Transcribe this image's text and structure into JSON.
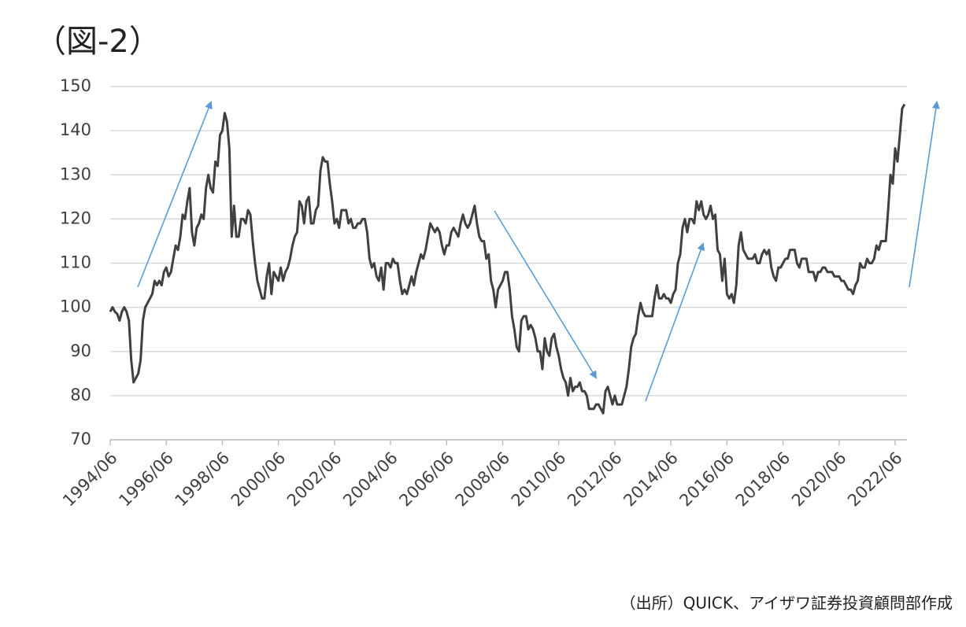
{
  "title": "（図-2）",
  "source": "（出所）QUICK、アイザワ証券投資顧問部作成",
  "chart_data": {
    "type": "line",
    "color": "#404040",
    "grid": true,
    "ylim": [
      70,
      150
    ],
    "yticks": [
      70,
      80,
      90,
      100,
      110,
      120,
      130,
      140,
      150
    ],
    "categories": [
      "1994/06",
      null,
      null,
      null,
      null,
      null,
      null,
      null,
      null,
      null,
      null,
      null,
      null,
      null,
      null,
      null,
      null,
      null,
      null,
      null,
      null,
      null,
      null,
      null,
      "1996/06",
      null,
      null,
      null,
      null,
      null,
      null,
      null,
      null,
      null,
      null,
      null,
      null,
      null,
      null,
      null,
      null,
      null,
      null,
      null,
      null,
      null,
      null,
      null,
      "1998/06",
      null,
      null,
      null,
      null,
      null,
      null,
      null,
      null,
      null,
      null,
      null,
      null,
      null,
      null,
      null,
      null,
      null,
      null,
      null,
      null,
      null,
      null,
      null,
      "2000/06",
      null,
      null,
      null,
      null,
      null,
      null,
      null,
      null,
      null,
      null,
      null,
      null,
      null,
      null,
      null,
      null,
      null,
      null,
      null,
      null,
      null,
      null,
      null,
      "2002/06",
      null,
      null,
      null,
      null,
      null,
      null,
      null,
      null,
      null,
      null,
      null,
      null,
      null,
      null,
      null,
      null,
      null,
      null,
      null,
      null,
      null,
      null,
      null,
      "2004/06",
      null,
      null,
      null,
      null,
      null,
      null,
      null,
      null,
      null,
      null,
      null,
      null,
      null,
      null,
      null,
      null,
      null,
      null,
      null,
      null,
      null,
      null,
      null,
      "2006/06",
      null,
      null,
      null,
      null,
      null,
      null,
      null,
      null,
      null,
      null,
      null,
      null,
      null,
      null,
      null,
      null,
      null,
      null,
      null,
      null,
      null,
      null,
      null,
      "2008/06",
      null,
      null,
      null,
      null,
      null,
      null,
      null,
      null,
      null,
      null,
      null,
      null,
      null,
      null,
      null,
      null,
      null,
      null,
      null,
      null,
      null,
      null,
      null,
      "2010/06",
      null,
      null,
      null,
      null,
      null,
      null,
      null,
      null,
      null,
      null,
      null,
      null,
      null,
      null,
      null,
      null,
      null,
      null,
      null,
      null,
      null,
      null,
      null,
      "2012/06",
      null,
      null,
      null,
      null,
      null,
      null,
      null,
      null,
      null,
      null,
      null,
      null,
      null,
      null,
      null,
      null,
      null,
      null,
      null,
      null,
      null,
      null,
      null,
      "2014/06",
      null,
      null,
      null,
      null,
      null,
      null,
      null,
      null,
      null,
      null,
      null,
      null,
      null,
      null,
      null,
      null,
      null,
      null,
      null,
      null,
      null,
      null,
      null,
      "2016/06",
      null,
      null,
      null,
      null,
      null,
      null,
      null,
      null,
      null,
      null,
      null,
      null,
      null,
      null,
      null,
      null,
      null,
      null,
      null,
      null,
      null,
      null,
      null,
      "2018/06",
      null,
      null,
      null,
      null,
      null,
      null,
      null,
      null,
      null,
      null,
      null,
      null,
      null,
      null,
      null,
      null,
      null,
      null,
      null,
      null,
      null,
      null,
      null,
      "2020/06",
      null,
      null,
      null,
      null,
      null,
      null,
      null,
      null,
      null,
      null,
      null,
      null,
      null,
      null,
      null,
      null,
      null,
      null,
      null,
      null,
      null,
      null,
      null,
      "2022/06",
      null,
      null,
      null,
      null
    ],
    "values": [
      99,
      100,
      99,
      98.5,
      97,
      99,
      100,
      99,
      97,
      88,
      83,
      84,
      85,
      88,
      97,
      100,
      101,
      102,
      103,
      106,
      105,
      106,
      105,
      108,
      109,
      107,
      108,
      111,
      114,
      113,
      116,
      121,
      120,
      124,
      127,
      117,
      114,
      118,
      119,
      121,
      120,
      127,
      130,
      127,
      126,
      133,
      132,
      139,
      140,
      144,
      142,
      136,
      116,
      123,
      116,
      116,
      120,
      120,
      119,
      122,
      121,
      115,
      110,
      106,
      104,
      102,
      102,
      107,
      110,
      103,
      108,
      107,
      106,
      109,
      106,
      108,
      109,
      111,
      114,
      116,
      117,
      124,
      123,
      119,
      124,
      125,
      119,
      119,
      122,
      123,
      131,
      134,
      133,
      133,
      128,
      124,
      119,
      120,
      118,
      122,
      122,
      122,
      119,
      120,
      118,
      118,
      119,
      119,
      120,
      120,
      117,
      111,
      109,
      110,
      107,
      106,
      109,
      104,
      110,
      110,
      109,
      111,
      110,
      110,
      106,
      103,
      104,
      103,
      105,
      107,
      105,
      108,
      110,
      112,
      111,
      113,
      116,
      119,
      118,
      117,
      118,
      117,
      114,
      112,
      114,
      114,
      117,
      118,
      117,
      116,
      119,
      121,
      119,
      118,
      119,
      121,
      123,
      119,
      116,
      115,
      115,
      111,
      112,
      106,
      104,
      100,
      104,
      105,
      106,
      108,
      108,
      104,
      98,
      95,
      91,
      90,
      97,
      98,
      98,
      95,
      96,
      95,
      93,
      90,
      90,
      86,
      93,
      90,
      89,
      93,
      94,
      91,
      89,
      86,
      84,
      83,
      80,
      84,
      81,
      82,
      82,
      83,
      81,
      81,
      80,
      77,
      77,
      77,
      78,
      78,
      77,
      76,
      81,
      82,
      80,
      78,
      80,
      78,
      78,
      78,
      80,
      82,
      86,
      91,
      93,
      94,
      98,
      101,
      99,
      98,
      98,
      98,
      98,
      102,
      105,
      102,
      102,
      103,
      102,
      102,
      101,
      103,
      104,
      110,
      112,
      118,
      120,
      117,
      120,
      120,
      119,
      124,
      122,
      124,
      121,
      120,
      121,
      123,
      120,
      121,
      113,
      112,
      106,
      111,
      103,
      102,
      103,
      101,
      105,
      114,
      117,
      113,
      112,
      111,
      111,
      111,
      112,
      110,
      110,
      112,
      113,
      112,
      113,
      109,
      107,
      106,
      109,
      109,
      110,
      111,
      111,
      113,
      113,
      113,
      110,
      109,
      111,
      111,
      111,
      108,
      108,
      108,
      106,
      108,
      108,
      109,
      109,
      108,
      108,
      108,
      107,
      107,
      107,
      106,
      106,
      105,
      104,
      104,
      103,
      105,
      106,
      110,
      109,
      109,
      111,
      110,
      110,
      111,
      114,
      113,
      115,
      115,
      115,
      122,
      130,
      128,
      136,
      133,
      139,
      145,
      146
    ]
  }
}
